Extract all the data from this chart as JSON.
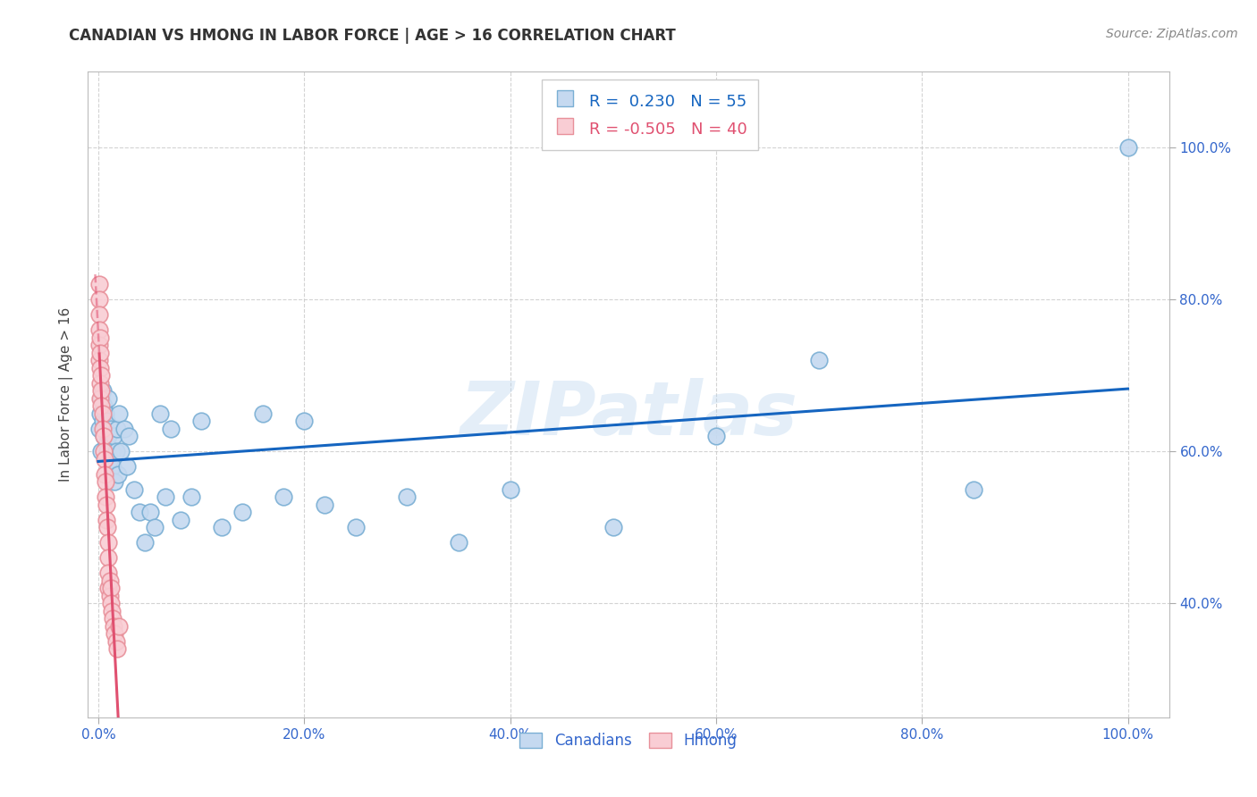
{
  "title": "CANADIAN VS HMONG IN LABOR FORCE | AGE > 16 CORRELATION CHART",
  "source": "Source: ZipAtlas.com",
  "ylabel": "In Labor Force | Age > 16",
  "xlim": [
    0.0,
    1.0
  ],
  "ylim": [
    0.0,
    1.12
  ],
  "x_ticks": [
    0.0,
    0.2,
    0.4,
    0.6,
    0.8,
    1.0
  ],
  "y_ticks": [
    0.4,
    0.6,
    0.8,
    1.0
  ],
  "canadian_fill": "#c5d9f0",
  "canadian_edge": "#7aafd4",
  "hmong_fill": "#f9cdd4",
  "hmong_edge": "#e8909a",
  "trend_blue": "#1565c0",
  "trend_pink": "#e05070",
  "R_canadian": 0.23,
  "N_canadian": 55,
  "R_hmong": -0.505,
  "N_hmong": 40,
  "legend_label_blue": "Canadians",
  "legend_label_pink": "Hmong",
  "canadians_x": [
    0.001,
    0.002,
    0.003,
    0.003,
    0.004,
    0.004,
    0.005,
    0.005,
    0.006,
    0.007,
    0.008,
    0.008,
    0.009,
    0.01,
    0.01,
    0.011,
    0.012,
    0.013,
    0.014,
    0.015,
    0.016,
    0.017,
    0.018,
    0.019,
    0.02,
    0.022,
    0.025,
    0.028,
    0.03,
    0.035,
    0.04,
    0.045,
    0.05,
    0.055,
    0.06,
    0.065,
    0.07,
    0.08,
    0.09,
    0.1,
    0.12,
    0.14,
    0.16,
    0.18,
    0.2,
    0.22,
    0.25,
    0.3,
    0.35,
    0.4,
    0.5,
    0.6,
    0.7,
    0.85,
    1.0
  ],
  "canadians_y": [
    0.63,
    0.65,
    0.6,
    0.67,
    0.64,
    0.68,
    0.62,
    0.66,
    0.63,
    0.65,
    0.61,
    0.64,
    0.6,
    0.62,
    0.67,
    0.59,
    0.63,
    0.6,
    0.58,
    0.62,
    0.56,
    0.6,
    0.63,
    0.57,
    0.65,
    0.6,
    0.63,
    0.58,
    0.62,
    0.55,
    0.52,
    0.48,
    0.52,
    0.5,
    0.65,
    0.54,
    0.63,
    0.51,
    0.54,
    0.64,
    0.5,
    0.52,
    0.65,
    0.54,
    0.64,
    0.53,
    0.5,
    0.54,
    0.48,
    0.55,
    0.5,
    0.62,
    0.72,
    0.55,
    1.0
  ],
  "hmong_x": [
    0.001,
    0.001,
    0.001,
    0.001,
    0.001,
    0.001,
    0.002,
    0.002,
    0.002,
    0.002,
    0.002,
    0.003,
    0.003,
    0.003,
    0.004,
    0.004,
    0.005,
    0.005,
    0.006,
    0.006,
    0.007,
    0.007,
    0.008,
    0.008,
    0.009,
    0.01,
    0.01,
    0.01,
    0.01,
    0.011,
    0.011,
    0.012,
    0.012,
    0.013,
    0.014,
    0.015,
    0.016,
    0.017,
    0.018,
    0.02
  ],
  "hmong_y": [
    0.82,
    0.8,
    0.78,
    0.76,
    0.74,
    0.72,
    0.75,
    0.73,
    0.71,
    0.69,
    0.67,
    0.7,
    0.68,
    0.66,
    0.65,
    0.63,
    0.62,
    0.6,
    0.59,
    0.57,
    0.56,
    0.54,
    0.53,
    0.51,
    0.5,
    0.48,
    0.46,
    0.44,
    0.42,
    0.43,
    0.41,
    0.42,
    0.4,
    0.39,
    0.38,
    0.37,
    0.36,
    0.35,
    0.34,
    0.37
  ],
  "watermark": "ZIPatlas",
  "background_color": "#ffffff",
  "grid_color": "#c8c8c8",
  "tick_color": "#3366cc",
  "marker_size": 180,
  "title_fontsize": 12,
  "source_fontsize": 10,
  "tick_fontsize": 11,
  "ylabel_fontsize": 11
}
